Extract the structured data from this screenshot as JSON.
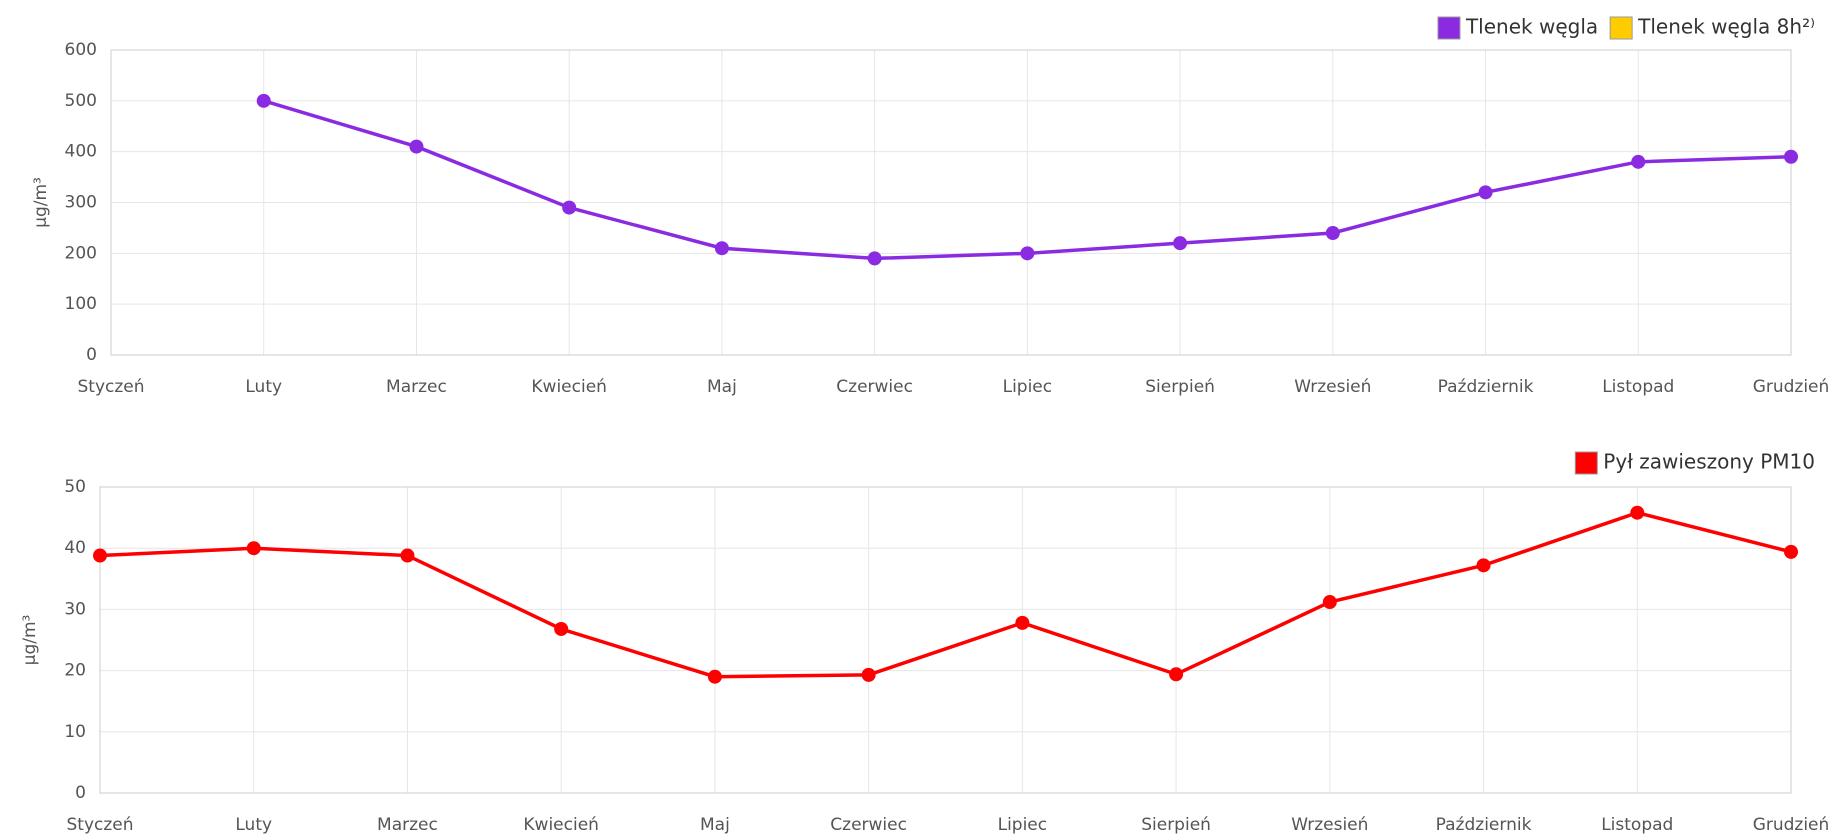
{
  "chart_data": [
    {
      "type": "line",
      "y_label": "μg/m³",
      "categories": [
        "Styczeń",
        "Luty",
        "Marzec",
        "Kwiecień",
        "Maj",
        "Czerwiec",
        "Lipiec",
        "Sierpień",
        "Wrzesień",
        "Październik",
        "Listopad",
        "Grudzień"
      ],
      "series": [
        {
          "name": "Tlenek węgla",
          "color": "#8a2be2",
          "values": [
            null,
            500,
            410,
            290,
            210,
            190,
            200,
            220,
            240,
            320,
            380,
            390
          ]
        },
        {
          "name": "Tlenek węgla 8h²⁾",
          "color": "#ffcc00",
          "values": [
            null,
            null,
            null,
            null,
            null,
            null,
            null,
            null,
            null,
            null,
            null,
            null
          ]
        }
      ],
      "ylim": [
        0,
        600
      ],
      "yticks": [
        0,
        100,
        200,
        300,
        400,
        500,
        600
      ],
      "grid": true,
      "legend": "top-right"
    },
    {
      "type": "line",
      "y_label": "μg/m³",
      "categories": [
        "Styczeń",
        "Luty",
        "Marzec",
        "Kwiecień",
        "Maj",
        "Czerwiec",
        "Lipiec",
        "Sierpień",
        "Wrzesień",
        "Październik",
        "Listopad",
        "Grudzień"
      ],
      "series": [
        {
          "name": "Pył zawieszony PM10",
          "color": "#ff0000",
          "values": [
            38.8,
            40,
            38.8,
            26.8,
            19,
            19.3,
            27.8,
            19.4,
            31.2,
            37.2,
            45.8,
            39.4
          ]
        }
      ],
      "ylim": [
        0,
        50
      ],
      "yticks": [
        0,
        10,
        20,
        30,
        40,
        50
      ],
      "grid": true,
      "legend": "top-right"
    }
  ]
}
